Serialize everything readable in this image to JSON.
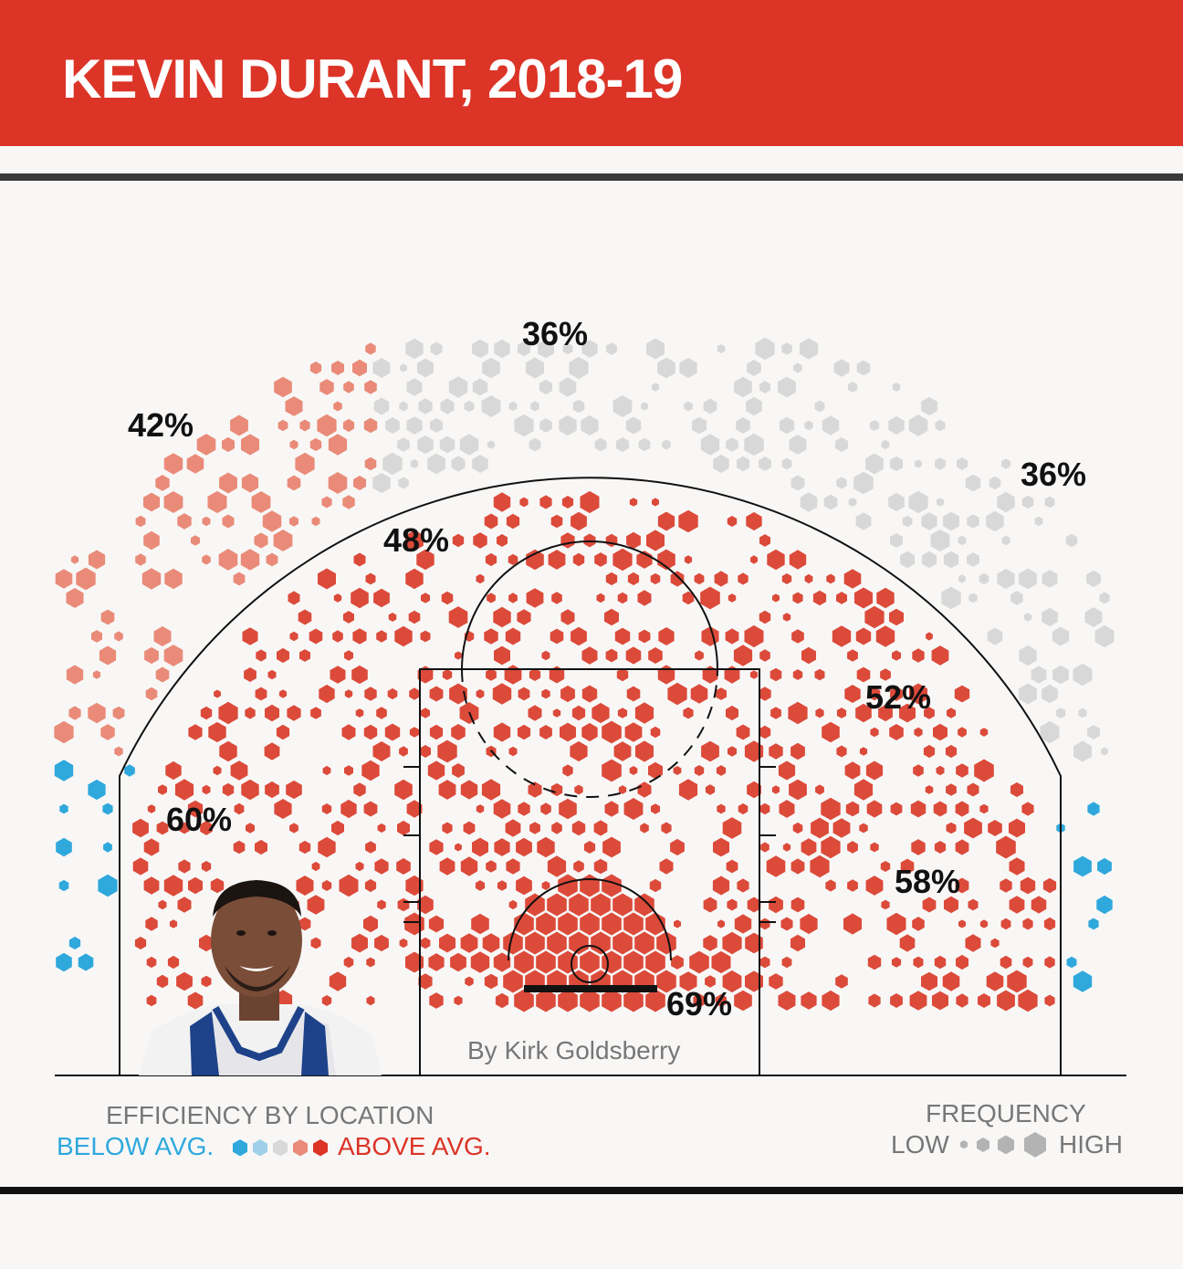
{
  "title": "KEVIN DURANT, 2018-19",
  "byline": "By Kirk Goldsberry",
  "chart_data": {
    "type": "heatmap",
    "title": "KEVIN DURANT, 2018-19",
    "zones": [
      {
        "label": "42%",
        "value": 42
      },
      {
        "label": "36%",
        "value": 36
      },
      {
        "label": "36%",
        "value": 36
      },
      {
        "label": "48%",
        "value": 48
      },
      {
        "label": "52%",
        "value": 52
      },
      {
        "label": "60%",
        "value": 60
      },
      {
        "label": "58%",
        "value": 58
      },
      {
        "label": "69%",
        "value": 69
      }
    ],
    "colors": {
      "below_strong": "#2fa8dc",
      "below": "#9fcfe9",
      "average": "#d8d8d8",
      "above": "#e98b78",
      "above_strong": "#dc4a3a"
    }
  },
  "legend": {
    "efficiency_title": "EFFICIENCY BY LOCATION",
    "below_label": "BELOW AVG.",
    "above_label": "ABOVE AVG.",
    "frequency_title": "FREQUENCY",
    "low_label": "LOW",
    "high_label": "HIGH"
  }
}
